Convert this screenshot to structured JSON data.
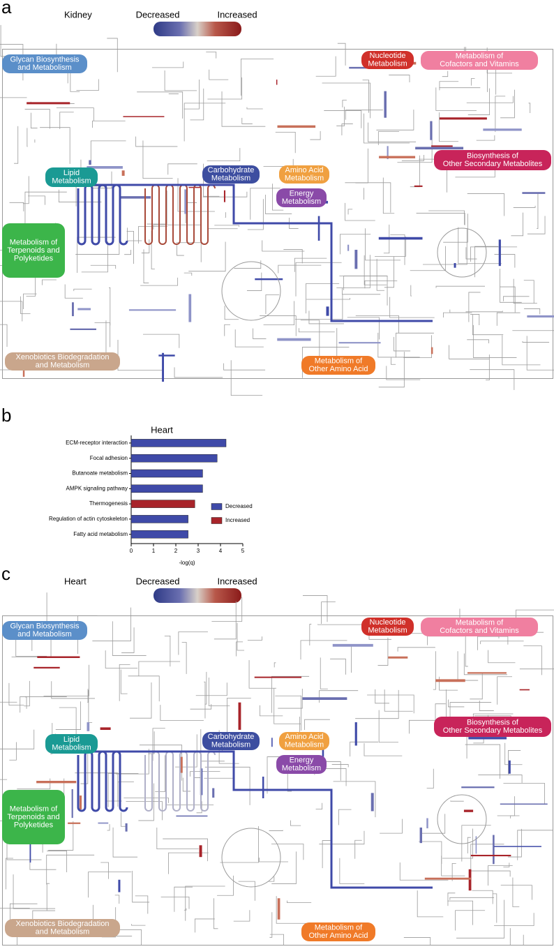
{
  "panel_a": {
    "letter": "a",
    "tissue": "Kidney",
    "scale_low": "Decreased",
    "scale_high": "Increased",
    "regions": [
      {
        "lines": [
          "Glycan Biosynthesis",
          "and Metabolism"
        ],
        "color": "#5b8fc9"
      },
      {
        "lines": [
          "Nucleotide",
          "Metabolism"
        ],
        "color": "#d0302a"
      },
      {
        "lines": [
          "Metabolism of",
          "Cofactors and Vitamins"
        ],
        "color": "#f07fa0"
      },
      {
        "lines": [
          "Biosynthesis of",
          "Other Secondary Metabolites"
        ],
        "color": "#c8245a"
      },
      {
        "lines": [
          "Lipid",
          "Metabolism"
        ],
        "color": "#1a9a94"
      },
      {
        "lines": [
          "Carbohydrate",
          "Metabolism"
        ],
        "color": "#3d4ea0"
      },
      {
        "lines": [
          "Amino Acid",
          "Metabolism"
        ],
        "color": "#f0a040"
      },
      {
        "lines": [
          "Energy",
          "Metabolism"
        ],
        "color": "#8a4aa8"
      },
      {
        "lines": [
          "Metabolism of",
          "Terpenoids and",
          "Polyketides"
        ],
        "color": "#3cb54a"
      },
      {
        "lines": [
          "Xenobiotics Biodegradation",
          "and Metabolism"
        ],
        "color": "#c9a68c"
      },
      {
        "lines": [
          "Metabolism of",
          "Other Amino Acid"
        ],
        "color": "#f07a28"
      }
    ]
  },
  "panel_b": {
    "letter": "b"
  },
  "chart_data": {
    "type": "hbar",
    "title": "Heart",
    "categories": [
      "ECM-receptor interaction",
      "Focal adhesion",
      "Butanoate metabolism",
      "AMPK signaling pathway",
      "Thermogenesis",
      "Regulation of actin cytoskeleton",
      "Fatty acid metabolism"
    ],
    "series": [
      {
        "name": "Decreased",
        "color": "#3f4aa8",
        "values": [
          4.25,
          3.85,
          3.2,
          3.2,
          null,
          2.55,
          2.55
        ]
      },
      {
        "name": "Increased",
        "color": "#a8242a",
        "values": [
          null,
          null,
          null,
          null,
          2.85,
          null,
          null
        ]
      }
    ],
    "xlabel": "-log(q)",
    "xlim": [
      0,
      5
    ],
    "xticks": [
      0,
      1,
      2,
      3,
      4,
      5
    ]
  },
  "panel_c": {
    "letter": "c",
    "tissue": "Heart",
    "scale_low": "Decreased",
    "scale_high": "Increased",
    "regions": [
      {
        "lines": [
          "Glycan Biosynthesis",
          "and Metabolism"
        ],
        "color": "#5b8fc9"
      },
      {
        "lines": [
          "Nucleotide",
          "Metabolism"
        ],
        "color": "#d0302a"
      },
      {
        "lines": [
          "Metabolism of",
          "Cofactors and Vitamins"
        ],
        "color": "#f07fa0"
      },
      {
        "lines": [
          "Biosynthesis of",
          "Other Secondary Metabolites"
        ],
        "color": "#c8245a"
      },
      {
        "lines": [
          "Lipid",
          "Metabolism"
        ],
        "color": "#1a9a94"
      },
      {
        "lines": [
          "Carbohydrate",
          "Metabolism"
        ],
        "color": "#3d4ea0"
      },
      {
        "lines": [
          "Amino Acid",
          "Metabolism"
        ],
        "color": "#f0a040"
      },
      {
        "lines": [
          "Energy",
          "Metabolism"
        ],
        "color": "#8a4aa8"
      },
      {
        "lines": [
          "Metabolism of",
          "Terpenoids and",
          "Polyketides"
        ],
        "color": "#3cb54a"
      },
      {
        "lines": [
          "Xenobiotics Biodegradation",
          "and Metabolism"
        ],
        "color": "#c9a68c"
      },
      {
        "lines": [
          "Metabolism of",
          "Other Amino Acid"
        ],
        "color": "#f07a28"
      }
    ]
  }
}
